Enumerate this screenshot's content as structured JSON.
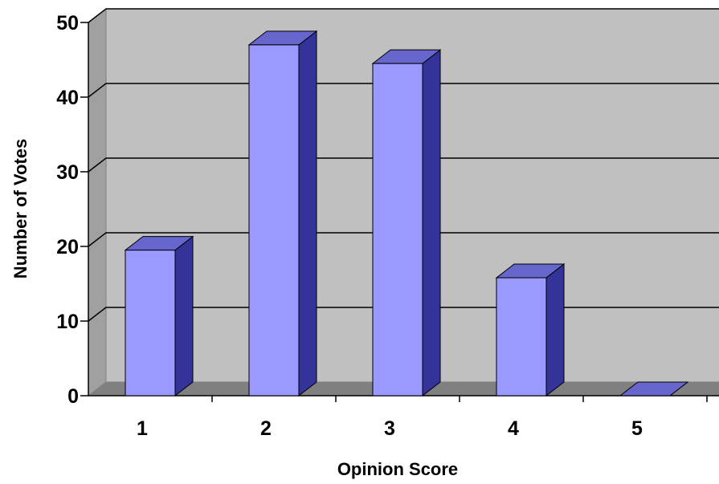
{
  "chart_data": {
    "type": "bar",
    "categories": [
      "1",
      "2",
      "3",
      "4",
      "5"
    ],
    "values": [
      19.5,
      47,
      44.5,
      15.8,
      0
    ],
    "xlabel": "Opinion Score",
    "ylabel": "Number of Votes",
    "ylim": [
      0,
      50
    ],
    "yticks": [
      "0",
      "10",
      "20",
      "30",
      "40",
      "50"
    ],
    "grid": true,
    "legend": "none",
    "style": "3d-column"
  },
  "colors": {
    "wall": "#c0c0c0",
    "floor": "#808080",
    "bar_front": "#9999ff",
    "bar_side": "#333399",
    "bar_top": "#6666cc",
    "grid": "#000000"
  }
}
